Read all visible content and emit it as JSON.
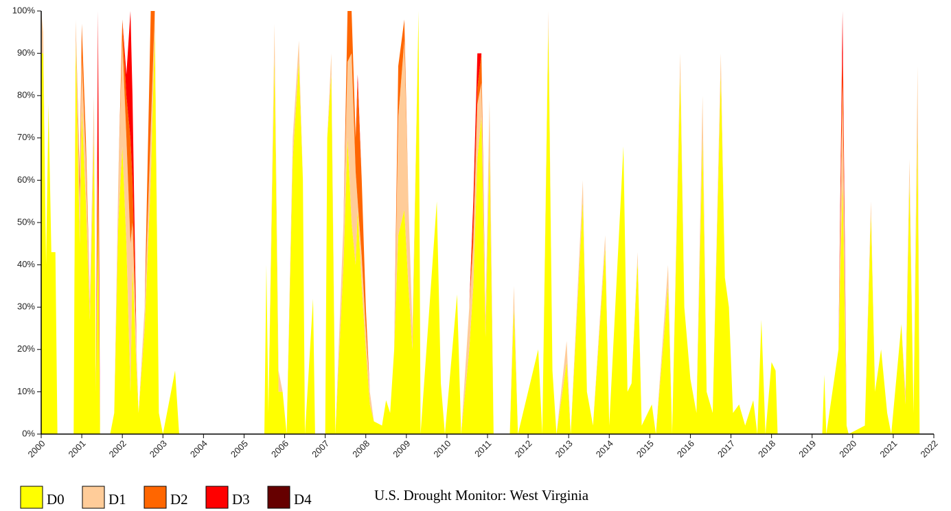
{
  "chart_data": {
    "type": "stacked_area",
    "title": "U.S. Drought Monitor: West Virginia",
    "x": [
      2000.0,
      2000.05,
      2000.12,
      2000.18,
      2000.25,
      2000.35,
      2000.4,
      2000.8,
      2000.85,
      2000.95,
      2001.0,
      2001.1,
      2001.2,
      2001.3,
      2001.35,
      2001.4,
      2001.45,
      2001.7,
      2001.8,
      2001.9,
      2002.0,
      2002.1,
      2002.2,
      2002.25,
      2002.35,
      2002.4,
      2002.55,
      2002.7,
      2002.8,
      2002.9,
      2003.0,
      2003.3,
      2003.4,
      2005.5,
      2005.55,
      2005.6,
      2005.75,
      2005.85,
      2005.95,
      2006.05,
      2006.2,
      2006.35,
      2006.45,
      2006.5,
      2006.7,
      2006.75,
      2007.0,
      2007.05,
      2007.15,
      2007.25,
      2007.45,
      2007.55,
      2007.65,
      2007.75,
      2007.8,
      2007.9,
      2008.0,
      2008.1,
      2008.2,
      2008.4,
      2008.5,
      2008.6,
      2008.7,
      2008.8,
      2008.95,
      2009.05,
      2009.15,
      2009.3,
      2009.35,
      2009.75,
      2009.85,
      2009.95,
      2010.25,
      2010.35,
      2010.55,
      2010.65,
      2010.75,
      2010.85,
      2010.95,
      2011.05,
      2011.15,
      2011.55,
      2011.65,
      2011.75,
      2012.25,
      2012.35,
      2012.5,
      2012.6,
      2012.7,
      2012.95,
      2013.05,
      2013.35,
      2013.45,
      2013.6,
      2013.9,
      2014.0,
      2014.35,
      2014.45,
      2014.55,
      2014.7,
      2014.8,
      2015.05,
      2015.15,
      2015.45,
      2015.55,
      2015.75,
      2015.85,
      2016.0,
      2016.15,
      2016.3,
      2016.4,
      2016.55,
      2016.75,
      2016.85,
      2016.95,
      2017.05,
      2017.2,
      2017.35,
      2017.55,
      2017.65,
      2017.75,
      2017.85,
      2018.0,
      2018.1,
      2018.15,
      2019.25,
      2019.3,
      2019.35,
      2019.65,
      2019.75,
      2019.85,
      2019.9,
      2020.3,
      2020.45,
      2020.55,
      2020.7,
      2020.85,
      2020.95,
      2021.2,
      2021.3,
      2021.4,
      2021.5,
      2021.6,
      2021.65
    ],
    "series": [
      {
        "name": "D0",
        "color": "#ffff00",
        "values": [
          90,
          90,
          40,
          78,
          43,
          43,
          0,
          0,
          93,
          45,
          77,
          55,
          27,
          70,
          10,
          60,
          0,
          0,
          5,
          50,
          68,
          45,
          10,
          40,
          15,
          5,
          25,
          60,
          95,
          5,
          0,
          15,
          0,
          0,
          40,
          5,
          89,
          10,
          10,
          0,
          65,
          88,
          60,
          0,
          32,
          0,
          0,
          70,
          85,
          0,
          40,
          70,
          50,
          40,
          53,
          35,
          20,
          7,
          3,
          2,
          8,
          5,
          20,
          47,
          53,
          35,
          20,
          100,
          0,
          55,
          12,
          0,
          33,
          0,
          20,
          35,
          65,
          75,
          23,
          67,
          0,
          0,
          30,
          0,
          20,
          0,
          97,
          15,
          0,
          17,
          0,
          55,
          10,
          2,
          44,
          2,
          68,
          10,
          12,
          41,
          2,
          7,
          0,
          35,
          0,
          85,
          30,
          13,
          5,
          70,
          10,
          5,
          85,
          37,
          30,
          5,
          7,
          2,
          8,
          0,
          27,
          0,
          17,
          15,
          0,
          0,
          14,
          0,
          20,
          60,
          2,
          0,
          2,
          52,
          10,
          20,
          5,
          0,
          26,
          7,
          60,
          5,
          72,
          0
        ]
      },
      {
        "name": "D1",
        "color": "#ffcc99",
        "values": [
          10,
          5,
          0,
          0,
          0,
          0,
          0,
          0,
          5,
          10,
          12,
          10,
          5,
          10,
          0,
          2,
          0,
          0,
          0,
          10,
          25,
          25,
          35,
          10,
          5,
          0,
          5,
          12,
          5,
          0,
          0,
          0,
          0,
          0,
          0,
          0,
          8,
          5,
          0,
          0,
          5,
          5,
          0,
          0,
          0,
          0,
          0,
          0,
          5,
          0,
          10,
          18,
          40,
          22,
          2,
          7,
          5,
          3,
          0,
          0,
          0,
          0,
          0,
          28,
          40,
          20,
          5,
          0,
          0,
          0,
          0,
          0,
          0,
          0,
          10,
          10,
          13,
          8,
          5,
          12,
          0,
          0,
          5,
          0,
          0,
          0,
          3,
          0,
          0,
          5,
          0,
          5,
          0,
          0,
          3,
          0,
          0,
          0,
          0,
          2,
          0,
          0,
          0,
          5,
          0,
          5,
          0,
          0,
          0,
          10,
          0,
          0,
          5,
          0,
          0,
          0,
          0,
          0,
          0,
          0,
          0,
          0,
          0,
          0,
          0,
          0,
          0,
          0,
          0,
          22,
          0,
          0,
          0,
          3,
          0,
          0,
          0,
          0,
          0,
          3,
          5,
          0,
          15,
          0
        ]
      },
      {
        "name": "D2",
        "color": "#ff6600",
        "values": [
          0,
          0,
          0,
          0,
          0,
          0,
          0,
          0,
          0,
          5,
          8,
          5,
          0,
          0,
          0,
          3,
          0,
          0,
          0,
          0,
          5,
          10,
          25,
          10,
          0,
          0,
          0,
          28,
          0,
          0,
          0,
          0,
          0,
          0,
          0,
          0,
          0,
          0,
          0,
          0,
          0,
          0,
          0,
          0,
          0,
          0,
          0,
          0,
          0,
          0,
          0,
          12,
          10,
          8,
          28,
          18,
          5,
          0,
          0,
          0,
          0,
          0,
          0,
          12,
          5,
          0,
          0,
          0,
          0,
          0,
          0,
          0,
          0,
          0,
          0,
          5,
          4,
          7,
          0,
          0,
          0,
          0,
          0,
          0,
          0,
          0,
          0,
          0,
          0,
          0,
          0,
          0,
          0,
          0,
          0,
          0,
          0,
          0,
          0,
          0,
          0,
          0,
          0,
          0,
          0,
          0,
          0,
          0,
          0,
          0,
          0,
          0,
          0,
          0,
          0,
          0,
          0,
          0,
          0,
          0,
          0,
          0,
          0,
          0,
          0,
          0,
          0,
          0,
          0,
          8,
          0,
          0,
          0,
          0,
          0,
          0,
          0,
          0,
          0,
          0,
          0,
          0,
          0,
          0
        ]
      },
      {
        "name": "D3",
        "color": "#ff0000",
        "values": [
          0,
          0,
          0,
          0,
          0,
          0,
          0,
          0,
          0,
          0,
          0,
          0,
          0,
          0,
          0,
          35,
          0,
          0,
          0,
          0,
          0,
          5,
          30,
          20,
          0,
          0,
          0,
          0,
          0,
          0,
          0,
          0,
          0,
          0,
          0,
          0,
          0,
          0,
          0,
          0,
          0,
          0,
          0,
          0,
          0,
          0,
          0,
          0,
          0,
          0,
          0,
          0,
          0,
          0,
          2,
          0,
          0,
          0,
          0,
          0,
          0,
          0,
          0,
          0,
          0,
          0,
          0,
          0,
          0,
          0,
          0,
          0,
          0,
          0,
          0,
          5,
          8,
          0,
          0,
          0,
          0,
          0,
          0,
          0,
          0,
          0,
          0,
          0,
          0,
          0,
          0,
          0,
          0,
          0,
          0,
          0,
          0,
          0,
          0,
          0,
          0,
          0,
          0,
          0,
          0,
          0,
          0,
          0,
          0,
          0,
          0,
          0,
          0,
          0,
          0,
          0,
          0,
          0,
          0,
          0,
          0,
          0,
          0,
          0,
          0,
          0,
          0,
          0,
          0,
          10,
          0,
          0,
          0,
          0,
          0,
          0,
          0,
          0,
          0,
          0,
          0,
          0,
          0,
          0
        ]
      },
      {
        "name": "D4",
        "color": "#660000",
        "values": [
          0,
          0,
          0,
          0,
          0,
          0,
          0,
          0,
          0,
          0,
          0,
          0,
          0,
          0,
          0,
          0,
          0,
          0,
          0,
          0,
          0,
          0,
          0,
          0,
          0,
          0,
          0,
          0,
          0,
          0,
          0,
          0,
          0,
          0,
          0,
          0,
          0,
          0,
          0,
          0,
          0,
          0,
          0,
          0,
          0,
          0,
          0,
          0,
          0,
          0,
          0,
          0,
          0,
          0,
          0,
          0,
          0,
          0,
          0,
          0,
          0,
          0,
          0,
          0,
          0,
          0,
          0,
          0,
          0,
          0,
          0,
          0,
          0,
          0,
          0,
          0,
          0,
          0,
          0,
          0,
          0,
          0,
          0,
          0,
          0,
          0,
          0,
          0,
          0,
          0,
          0,
          0,
          0,
          0,
          0,
          0,
          0,
          0,
          0,
          0,
          0,
          0,
          0,
          0,
          0,
          0,
          0,
          0,
          0,
          0,
          0,
          0,
          0,
          0,
          0,
          0,
          0,
          0,
          0,
          0,
          0,
          0,
          0,
          0,
          0,
          0,
          0,
          0,
          0,
          0,
          0,
          0,
          0,
          0,
          0,
          0,
          0,
          0,
          0,
          0,
          0,
          0,
          0,
          0
        ]
      }
    ],
    "xlim": [
      2000,
      2022
    ],
    "xticks": [
      2000,
      2001,
      2002,
      2003,
      2004,
      2005,
      2006,
      2007,
      2008,
      2009,
      2010,
      2011,
      2012,
      2013,
      2014,
      2015,
      2016,
      2017,
      2018,
      2019,
      2020,
      2021,
      2022
    ],
    "ylim": [
      0,
      100
    ],
    "yticks": [
      {
        "value": 0,
        "label": "0%"
      },
      {
        "value": 10,
        "label": "10%"
      },
      {
        "value": 20,
        "label": "20%"
      },
      {
        "value": 30,
        "label": "30%"
      },
      {
        "value": 40,
        "label": "40%"
      },
      {
        "value": 50,
        "label": "50%"
      },
      {
        "value": 60,
        "label": "60%"
      },
      {
        "value": 70,
        "label": "70%"
      },
      {
        "value": 80,
        "label": "80%"
      },
      {
        "value": 90,
        "label": "90%"
      },
      {
        "value": 100,
        "label": "100%"
      }
    ],
    "grid": false
  }
}
